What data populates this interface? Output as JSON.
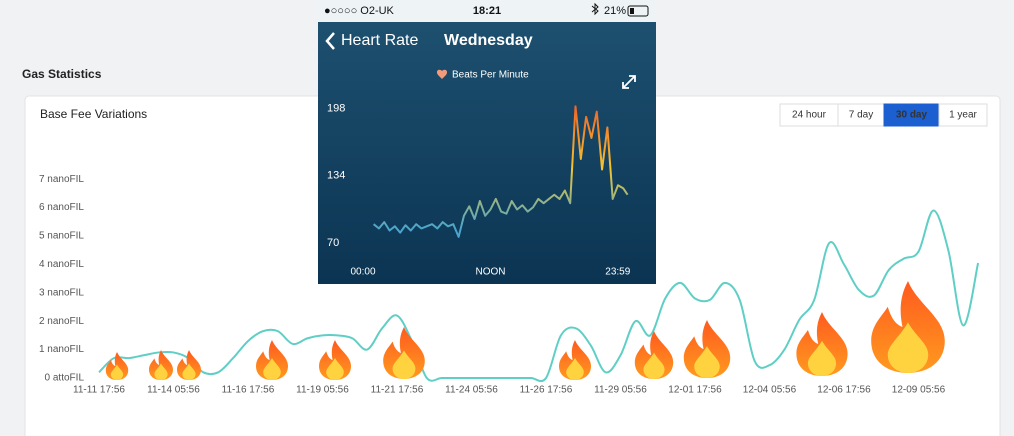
{
  "page": {
    "title": "Gas Statistics"
  },
  "card": {
    "range_buttons": [
      "24 hour",
      "7 day",
      "30 day",
      "1 year"
    ],
    "active_range_index": 2
  },
  "phone": {
    "status": {
      "carrier": "●○○○○ O2-UK",
      "time": "18:21",
      "battery": "21%"
    },
    "back": "Heart Rate",
    "title": "Wednesday"
  },
  "chart_data": [
    {
      "type": "line",
      "title": "Base Fee Variations",
      "color": "#5fcfc5",
      "categories": [
        "11-11 17:56",
        null,
        null,
        null,
        null,
        "11-14 05:56",
        null,
        null,
        null,
        null,
        "11-16 17:56",
        null,
        null,
        null,
        null,
        "11-19 05:56",
        null,
        null,
        null,
        null,
        "11-21 17:56",
        null,
        null,
        null,
        null,
        "11-24 05:56",
        null,
        null,
        null,
        null,
        "11-26 17:56",
        null,
        null,
        null,
        null,
        "11-29 05:56",
        null,
        null,
        null,
        null,
        "12-01 17:56",
        null,
        null,
        null,
        null,
        "12-04 05:56",
        null,
        null,
        null,
        null,
        "12-06 17:56",
        null,
        null,
        null,
        null,
        "12-09 05:56",
        null,
        null,
        null,
        null
      ],
      "values": [
        0.2,
        0.7,
        0.7,
        0.8,
        0.9,
        0.9,
        0.7,
        0.2,
        0.2,
        0.7,
        1.3,
        1.65,
        1.65,
        1.2,
        1.4,
        1.5,
        1.5,
        1.4,
        1.0,
        1.75,
        2.2,
        1.3,
        0,
        0,
        0,
        0,
        0,
        0,
        0,
        0,
        0,
        1.5,
        1.75,
        1.15,
        0.2,
        0.8,
        2.0,
        1.5,
        2.8,
        3.35,
        2.8,
        2.75,
        3.35,
        2.75,
        0.6,
        0.45,
        1.0,
        2.05,
        2.75,
        4.75,
        4.0,
        3.1,
        2.9,
        3.8,
        4.2,
        4.45,
        5.9,
        4.5,
        1.85,
        4.05
      ],
      "ylim": [
        0,
        7.5
      ],
      "yticks": [
        {
          "value": 0,
          "label": "0 attoFIL"
        },
        {
          "value": 1,
          "label": "1 nanoFIL"
        },
        {
          "value": 2,
          "label": "2 nanoFIL"
        },
        {
          "value": 3,
          "label": "3 nanoFIL"
        },
        {
          "value": 4,
          "label": "4 nanoFIL"
        },
        {
          "value": 5,
          "label": "5 nanoFIL"
        },
        {
          "value": 6,
          "label": "6 nanoFIL"
        },
        {
          "value": 7,
          "label": "7 nanoFIL"
        }
      ],
      "grid": false
    },
    {
      "type": "line",
      "x": [
        1,
        1.5,
        2,
        2.5,
        3,
        3.5,
        4,
        4.5,
        5,
        5.5,
        6,
        6.5,
        7,
        7.5,
        8,
        8.5,
        9,
        9.5,
        10,
        10.5,
        11,
        11.5,
        12,
        12.5,
        13,
        13.5,
        14,
        14.5,
        15,
        15.5,
        16,
        16.5,
        17,
        17.5,
        18,
        18.5,
        19,
        19.5,
        20,
        20.5,
        21,
        21.5,
        22,
        22.5,
        23,
        23.5,
        24,
        24.5,
        24.9
      ],
      "series": [
        {
          "name": "Beats Per Minute",
          "colors": [
            "#4aa6cc",
            "#f3c531",
            "#f0672a"
          ],
          "values": [
            88,
            84,
            90,
            82,
            86,
            80,
            87,
            82,
            88,
            84,
            86,
            88,
            84,
            90,
            86,
            88,
            76,
            96,
            105,
            93,
            110,
            96,
            102,
            112,
            100,
            98,
            110,
            102,
            106,
            100,
            104,
            112,
            108,
            112,
            116,
            112,
            120,
            108,
            200,
            150,
            190,
            170,
            195,
            140,
            180,
            112,
            125,
            122,
            116
          ]
        }
      ],
      "xlim": [
        0,
        24
      ],
      "xticks": [
        {
          "value": 0,
          "label": "00:00"
        },
        {
          "value": 12,
          "label": "NOON"
        },
        {
          "value": 23.98,
          "label": "23:59"
        }
      ],
      "ylim": [
        54,
        206
      ],
      "yticks": [
        70,
        134,
        198
      ],
      "grid": false
    }
  ]
}
